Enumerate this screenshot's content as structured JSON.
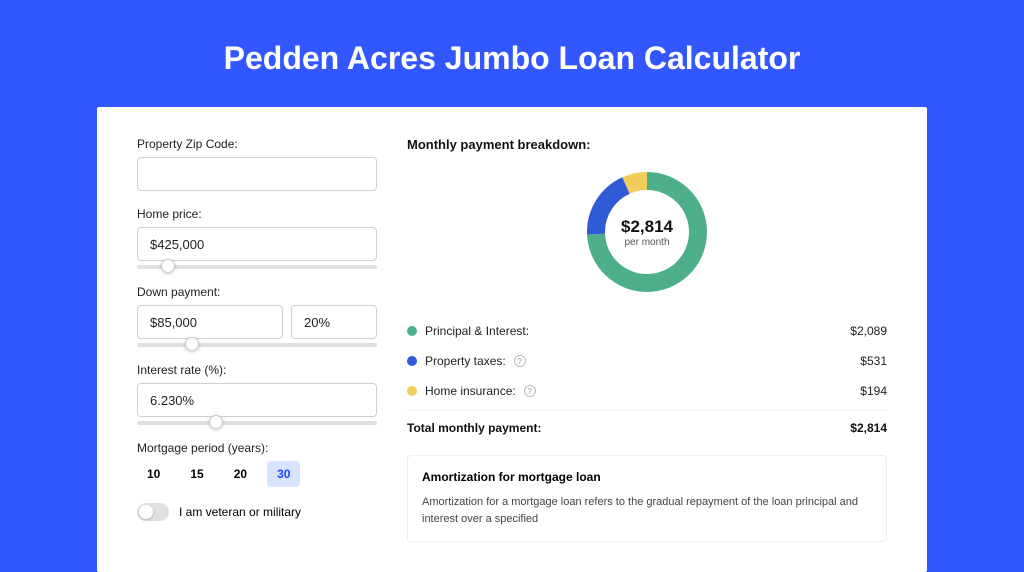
{
  "page": {
    "title": "Pedden Acres Jumbo Loan Calculator",
    "bg_color": "#3357ff",
    "card_bg": "#ffffff"
  },
  "form": {
    "zip": {
      "label": "Property Zip Code:",
      "value": ""
    },
    "home_price": {
      "label": "Home price:",
      "value": "$425,000",
      "slider_pct": 10
    },
    "down_payment": {
      "label": "Down payment:",
      "amount": "$85,000",
      "percent": "20%",
      "slider_pct": 20
    },
    "interest_rate": {
      "label": "Interest rate (%):",
      "value": "6.230%",
      "slider_pct": 30
    },
    "mortgage_period": {
      "label": "Mortgage period (years):",
      "options": [
        "10",
        "15",
        "20",
        "30"
      ],
      "selected_index": 3
    },
    "veteran": {
      "label": "I am veteran or military",
      "checked": false
    }
  },
  "breakdown": {
    "title": "Monthly payment breakdown:",
    "center_value": "$2,814",
    "center_sub": "per month",
    "donut": {
      "size": 120,
      "stroke_width": 18,
      "segments": [
        {
          "label": "Principal & Interest:",
          "value": "$2,089",
          "color": "#4eb08b",
          "pct": 74.2,
          "has_info": false
        },
        {
          "label": "Property taxes:",
          "value": "$531",
          "color": "#2f5bd6",
          "pct": 18.9,
          "has_info": true
        },
        {
          "label": "Home insurance:",
          "value": "$194",
          "color": "#f2cd5c",
          "pct": 6.9,
          "has_info": true
        }
      ]
    },
    "total": {
      "label": "Total monthly payment:",
      "value": "$2,814"
    }
  },
  "amortization": {
    "title": "Amortization for mortgage loan",
    "text": "Amortization for a mortgage loan refers to the gradual repayment of the loan principal and interest over a specified"
  }
}
